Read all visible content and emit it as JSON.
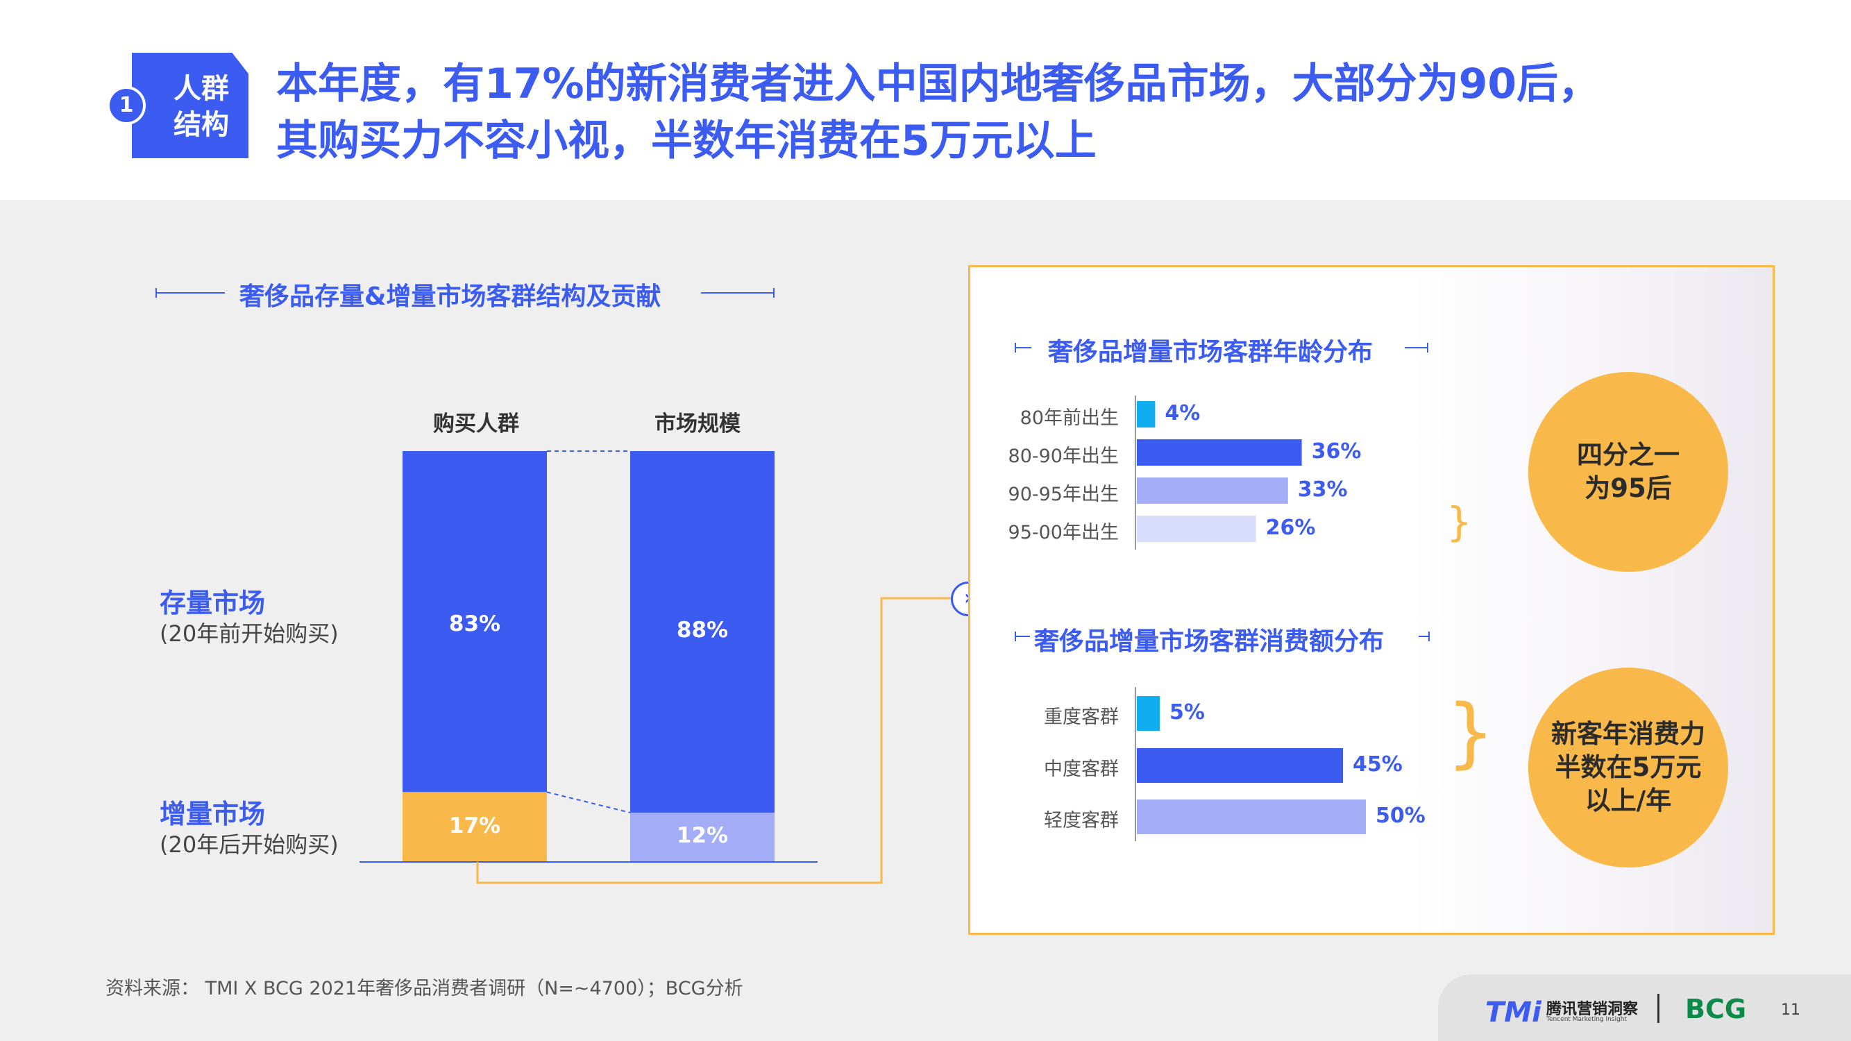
{
  "header": {
    "badge_number": "1",
    "badge_line1": "人群",
    "badge_line2": "结构",
    "title_line1": "本年度，有17%的新消费者进入中国内地奢侈品市场，大部分为90后，",
    "title_line2": "其购买力不容小视，半数年消费在5万元以上"
  },
  "left_chart": {
    "title": "奢侈品存量&增量市场客群结构及贡献",
    "stock_label": "存量市场",
    "stock_sub": "(20年前开始购买)",
    "incr_label": "增量市场",
    "incr_sub": "(20年后开始购买)"
  },
  "chart_data": [
    {
      "type": "bar",
      "stacked": true,
      "categories": [
        "购买人群",
        "市场规模"
      ],
      "series": [
        {
          "name": "存量市场",
          "values": [
            83,
            88
          ],
          "labels": [
            "83%",
            "88%"
          ],
          "colors": [
            "#3b5bf1",
            "#3b5bf1"
          ]
        },
        {
          "name": "增量市场",
          "values": [
            17,
            12
          ],
          "labels": [
            "17%",
            "12%"
          ],
          "colors": [
            "#f8b94a",
            "#a4aef8"
          ]
        }
      ],
      "ylim": [
        0,
        100
      ]
    },
    {
      "type": "bar",
      "orientation": "horizontal",
      "title": "奢侈品增量市场客群年龄分布",
      "categories": [
        "80年前出生",
        "80-90年出生",
        "90-95年出生",
        "95-00年出生"
      ],
      "values": [
        4,
        36,
        33,
        26
      ],
      "labels": [
        "4%",
        "36%",
        "33%",
        "26%"
      ],
      "colors": [
        "#10aef0",
        "#3b5bf1",
        "#a4aef8",
        "#d8dcfb"
      ]
    },
    {
      "type": "bar",
      "orientation": "horizontal",
      "title": "奢侈品增量市场客群消费额分布",
      "categories": [
        "重度客群",
        "中度客群",
        "轻度客群"
      ],
      "values": [
        5,
        45,
        50
      ],
      "labels": [
        "5%",
        "45%",
        "50%"
      ],
      "colors": [
        "#10aef0",
        "#3b5bf1",
        "#a4aef8"
      ]
    }
  ],
  "callouts": {
    "age": [
      "四分之一",
      "为95后"
    ],
    "spend": [
      "新客年消费力",
      "半数在5万元",
      "以上/年"
    ]
  },
  "source": "资料来源： TMI X BCG 2021年奢侈品消费者调研（N=~4700）；BCG分析",
  "footer": {
    "tmi_logo": "TMi",
    "tmi_cn": "腾讯营销洞察",
    "tmi_en": "Tencent Marketing Insight",
    "bcg_logo": "BCG",
    "page": "11"
  },
  "colors": {
    "accent": "#3b5bf1",
    "orange": "#f8b94a",
    "light_blue": "#a4aef8",
    "cyan": "#10aef0",
    "pale_blue": "#d8dcfb"
  }
}
